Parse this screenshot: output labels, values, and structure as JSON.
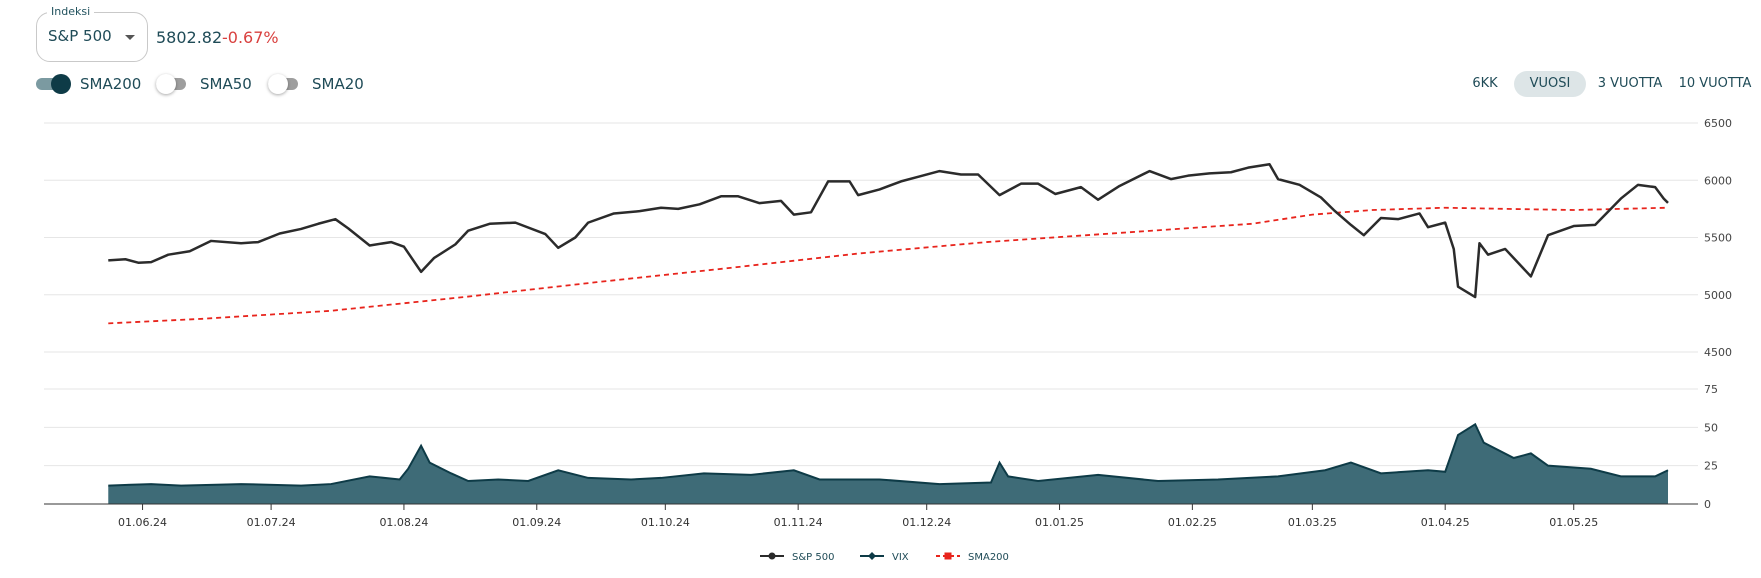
{
  "index_select": {
    "legend": "Indeksi",
    "value": "S&P 500"
  },
  "quote": {
    "price": "5802.82",
    "change": "-0.67%"
  },
  "toggles": [
    {
      "label": "SMA200",
      "on": true
    },
    {
      "label": "SMA50",
      "on": false
    },
    {
      "label": "SMA20",
      "on": false
    }
  ],
  "periods": [
    {
      "label": "6KK",
      "active": false
    },
    {
      "label": "VUOSI",
      "active": true
    },
    {
      "label": "3 VUOTTA",
      "active": false
    },
    {
      "label": "10 VUOTTA",
      "active": false
    }
  ],
  "colors": {
    "sp500": "#2b2b2b",
    "vix": "#0e3b47",
    "vix_fill": "#3e6b77",
    "sma200": "#e8241c",
    "change_negative": "#d9413f"
  },
  "chart_data": [
    {
      "type": "line",
      "x_ticks": [
        "01.06.24",
        "01.07.24",
        "01.08.24",
        "01.09.24",
        "01.10.24",
        "01.11.24",
        "01.12.24",
        "01.01.25",
        "01.02.25",
        "01.03.25",
        "01.04.25",
        "01.05.25"
      ],
      "y_ticks": [
        "6500",
        "6000",
        "5500",
        "5000",
        "4500"
      ],
      "ylim": [
        4500,
        6500
      ],
      "grid": true,
      "series": [
        {
          "name": "S&P 500",
          "points": [
            [
              "2024-05-24",
              5300
            ],
            [
              "2024-05-28",
              5310
            ],
            [
              "2024-05-31",
              5280
            ],
            [
              "2024-06-03",
              5285
            ],
            [
              "2024-06-07",
              5350
            ],
            [
              "2024-06-12",
              5380
            ],
            [
              "2024-06-17",
              5470
            ],
            [
              "2024-06-24",
              5450
            ],
            [
              "2024-06-28",
              5460
            ],
            [
              "2024-07-03",
              5535
            ],
            [
              "2024-07-08",
              5575
            ],
            [
              "2024-07-12",
              5620
            ],
            [
              "2024-07-16",
              5660
            ],
            [
              "2024-07-19",
              5580
            ],
            [
              "2024-07-24",
              5430
            ],
            [
              "2024-07-29",
              5460
            ],
            [
              "2024-08-01",
              5420
            ],
            [
              "2024-08-05",
              5200
            ],
            [
              "2024-08-08",
              5320
            ],
            [
              "2024-08-13",
              5440
            ],
            [
              "2024-08-16",
              5560
            ],
            [
              "2024-08-21",
              5620
            ],
            [
              "2024-08-27",
              5630
            ],
            [
              "2024-09-03",
              5530
            ],
            [
              "2024-09-06",
              5410
            ],
            [
              "2024-09-10",
              5500
            ],
            [
              "2024-09-13",
              5630
            ],
            [
              "2024-09-19",
              5710
            ],
            [
              "2024-09-25",
              5730
            ],
            [
              "2024-09-30",
              5760
            ],
            [
              "2024-10-04",
              5750
            ],
            [
              "2024-10-09",
              5790
            ],
            [
              "2024-10-14",
              5860
            ],
            [
              "2024-10-18",
              5860
            ],
            [
              "2024-10-23",
              5800
            ],
            [
              "2024-10-28",
              5820
            ],
            [
              "2024-10-31",
              5700
            ],
            [
              "2024-11-04",
              5720
            ],
            [
              "2024-11-08",
              5990
            ],
            [
              "2024-11-13",
              5990
            ],
            [
              "2024-11-15",
              5870
            ],
            [
              "2024-11-20",
              5920
            ],
            [
              "2024-11-25",
              5990
            ],
            [
              "2024-11-29",
              6030
            ],
            [
              "2024-12-04",
              6080
            ],
            [
              "2024-12-09",
              6050
            ],
            [
              "2024-12-13",
              6050
            ],
            [
              "2024-12-18",
              5870
            ],
            [
              "2024-12-23",
              5970
            ],
            [
              "2024-12-27",
              5970
            ],
            [
              "2024-12-31",
              5880
            ],
            [
              "2025-01-06",
              5940
            ],
            [
              "2025-01-10",
              5830
            ],
            [
              "2025-01-15",
              5950
            ],
            [
              "2025-01-22",
              6080
            ],
            [
              "2025-01-27",
              6010
            ],
            [
              "2025-01-31",
              6040
            ],
            [
              "2025-02-05",
              6060
            ],
            [
              "2025-02-10",
              6070
            ],
            [
              "2025-02-14",
              6110
            ],
            [
              "2025-02-19",
              6140
            ],
            [
              "2025-02-21",
              6010
            ],
            [
              "2025-02-26",
              5960
            ],
            [
              "2025-03-03",
              5850
            ],
            [
              "2025-03-06",
              5740
            ],
            [
              "2025-03-10",
              5610
            ],
            [
              "2025-03-13",
              5520
            ],
            [
              "2025-03-17",
              5670
            ],
            [
              "2025-03-21",
              5660
            ],
            [
              "2025-03-26",
              5710
            ],
            [
              "2025-03-28",
              5590
            ],
            [
              "2025-04-01",
              5630
            ],
            [
              "2025-04-03",
              5400
            ],
            [
              "2025-04-04",
              5070
            ],
            [
              "2025-04-08",
              4980
            ],
            [
              "2025-04-09",
              5450
            ],
            [
              "2025-04-11",
              5350
            ],
            [
              "2025-04-15",
              5400
            ],
            [
              "2025-04-21",
              5160
            ],
            [
              "2025-04-25",
              5520
            ],
            [
              "2025-05-01",
              5600
            ],
            [
              "2025-05-06",
              5610
            ],
            [
              "2025-05-12",
              5840
            ],
            [
              "2025-05-16",
              5960
            ],
            [
              "2025-05-20",
              5940
            ],
            [
              "2025-05-22",
              5840
            ],
            [
              "2025-05-23",
              5802
            ]
          ]
        },
        {
          "name": "SMA200",
          "points": [
            [
              "2024-05-24",
              4750
            ],
            [
              "2024-06-15",
              4790
            ],
            [
              "2024-07-15",
              4860
            ],
            [
              "2024-08-15",
              4980
            ],
            [
              "2024-09-15",
              5110
            ],
            [
              "2024-10-15",
              5230
            ],
            [
              "2024-11-15",
              5360
            ],
            [
              "2024-12-15",
              5460
            ],
            [
              "2025-01-15",
              5540
            ],
            [
              "2025-02-15",
              5620
            ],
            [
              "2025-03-01",
              5700
            ],
            [
              "2025-03-15",
              5740
            ],
            [
              "2025-04-01",
              5760
            ],
            [
              "2025-04-15",
              5750
            ],
            [
              "2025-05-01",
              5740
            ],
            [
              "2025-05-23",
              5760
            ]
          ]
        }
      ]
    },
    {
      "type": "area",
      "y_ticks": [
        "75",
        "50",
        "25",
        "0"
      ],
      "ylim": [
        0,
        75
      ],
      "grid": true,
      "series": [
        {
          "name": "VIX",
          "points": [
            [
              "2024-05-24",
              12
            ],
            [
              "2024-06-03",
              13
            ],
            [
              "2024-06-10",
              12
            ],
            [
              "2024-06-24",
              13
            ],
            [
              "2024-07-08",
              12
            ],
            [
              "2024-07-15",
              13
            ],
            [
              "2024-07-24",
              18
            ],
            [
              "2024-07-31",
              16
            ],
            [
              "2024-08-02",
              23
            ],
            [
              "2024-08-05",
              38
            ],
            [
              "2024-08-07",
              27
            ],
            [
              "2024-08-12",
              20
            ],
            [
              "2024-08-16",
              15
            ],
            [
              "2024-08-23",
              16
            ],
            [
              "2024-08-30",
              15
            ],
            [
              "2024-09-06",
              22
            ],
            [
              "2024-09-13",
              17
            ],
            [
              "2024-09-23",
              16
            ],
            [
              "2024-09-30",
              17
            ],
            [
              "2024-10-10",
              20
            ],
            [
              "2024-10-21",
              19
            ],
            [
              "2024-10-31",
              22
            ],
            [
              "2024-11-06",
              16
            ],
            [
              "2024-11-20",
              16
            ],
            [
              "2024-12-04",
              13
            ],
            [
              "2024-12-16",
              14
            ],
            [
              "2024-12-18",
              27
            ],
            [
              "2024-12-20",
              18
            ],
            [
              "2024-12-27",
              15
            ],
            [
              "2025-01-10",
              19
            ],
            [
              "2025-01-24",
              15
            ],
            [
              "2025-02-07",
              16
            ],
            [
              "2025-02-21",
              18
            ],
            [
              "2025-03-04",
              22
            ],
            [
              "2025-03-10",
              27
            ],
            [
              "2025-03-17",
              20
            ],
            [
              "2025-03-28",
              22
            ],
            [
              "2025-04-01",
              21
            ],
            [
              "2025-04-04",
              45
            ],
            [
              "2025-04-08",
              52
            ],
            [
              "2025-04-10",
              40
            ],
            [
              "2025-04-17",
              30
            ],
            [
              "2025-04-21",
              33
            ],
            [
              "2025-04-25",
              25
            ],
            [
              "2025-05-05",
              23
            ],
            [
              "2025-05-12",
              18
            ],
            [
              "2025-05-20",
              18
            ],
            [
              "2025-05-23",
              22
            ]
          ]
        }
      ]
    }
  ],
  "legend": [
    {
      "label": "S&P 500",
      "marker": "circle"
    },
    {
      "label": "VIX",
      "marker": "diamond"
    },
    {
      "label": "SMA200",
      "marker": "square"
    }
  ]
}
